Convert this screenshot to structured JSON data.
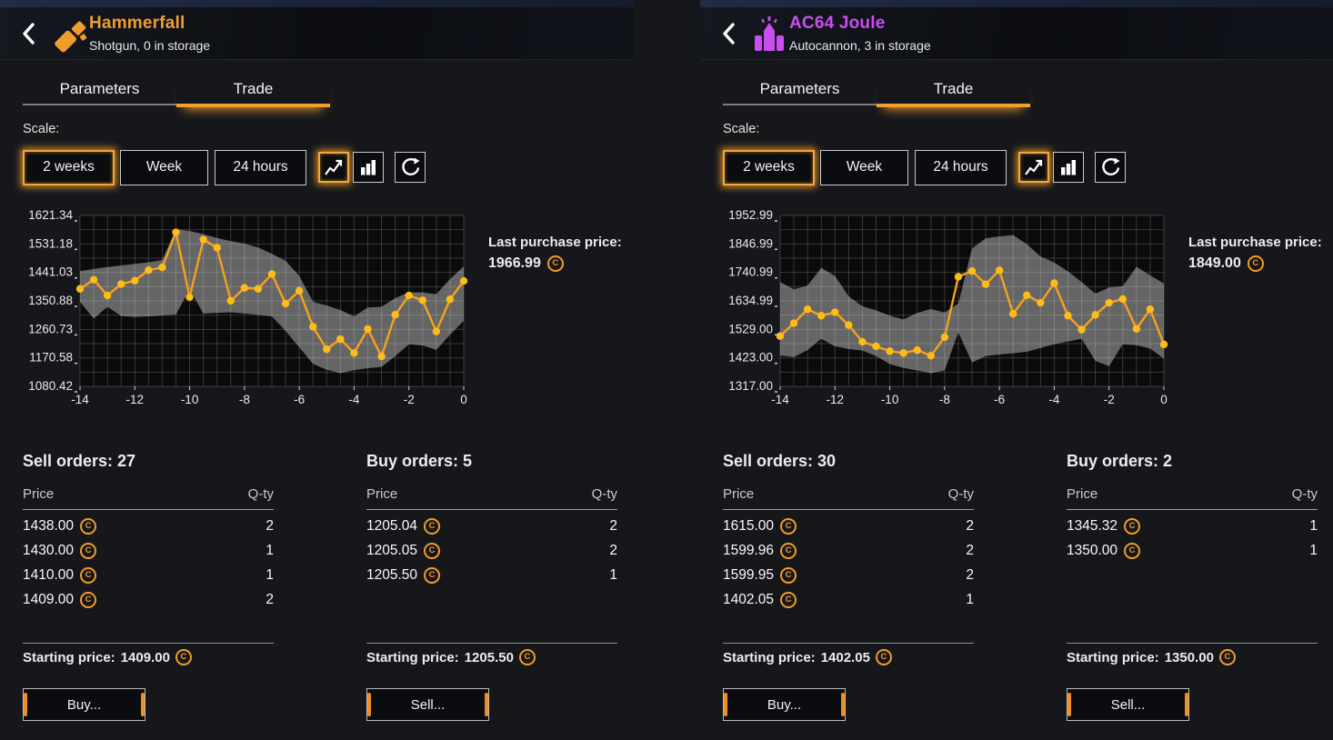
{
  "colors": {
    "accent_orange": "#f09d2e",
    "accent_purple": "#c84ef0",
    "chart_line": "#f6a11c",
    "chart_dot": "#ffbb18",
    "chart_band": "#6e6e6e",
    "selected_glow": "#f4a63a"
  },
  "panels": [
    {
      "title": "Hammerfall",
      "subtitle": "Shotgun, 0 in storage",
      "icon": "shotgun-icon",
      "accent": "#f09d2e",
      "tabs": {
        "parameters": "Parameters",
        "trade": "Trade"
      },
      "active_tab": "Trade",
      "scale": {
        "label": "Scale:",
        "buttons": [
          "2 weeks",
          "Week",
          "24 hours"
        ],
        "selected": "2 weeks",
        "selected_view": "line"
      },
      "last_purchase": {
        "label": "Last purchase price:",
        "price": "1966.99"
      },
      "sell": {
        "title": "Sell orders: 27",
        "price_header": "Price",
        "qty_header": "Q-ty",
        "rows": [
          {
            "price": "1438.00",
            "qty": "2"
          },
          {
            "price": "1430.00",
            "qty": "1"
          },
          {
            "price": "1410.00",
            "qty": "1"
          },
          {
            "price": "1409.00",
            "qty": "2"
          }
        ],
        "starting_label": "Starting price:",
        "starting_price": "1409.00",
        "action": "Buy..."
      },
      "buy": {
        "title": "Buy orders: 5",
        "price_header": "Price",
        "qty_header": "Q-ty",
        "rows": [
          {
            "price": "1205.04",
            "qty": "2"
          },
          {
            "price": "1205.05",
            "qty": "2"
          },
          {
            "price": "1205.50",
            "qty": "1"
          }
        ],
        "starting_label": "Starting price:",
        "starting_price": "1205.50",
        "action": "Sell..."
      },
      "chart_data": {
        "type": "line",
        "x": [
          -14,
          -13.5,
          -13,
          -12.5,
          -12,
          -11.5,
          -11,
          -10.5,
          -10,
          -9.5,
          -9,
          -8.5,
          -8,
          -7.5,
          -7,
          -6.5,
          -6,
          -5.5,
          -5,
          -4.5,
          -4,
          -3.5,
          -3,
          -2.5,
          -2,
          -1.5,
          -1,
          -0.5,
          0
        ],
        "series": [
          {
            "name": "price",
            "values": [
              1389,
              1418,
              1368,
              1404,
              1415,
              1448,
              1457,
              1568,
              1363,
              1545,
              1519,
              1351,
              1392,
              1389,
              1436,
              1342,
              1383,
              1269,
              1198,
              1230,
              1186,
              1262,
              1175,
              1307,
              1368,
              1353,
              1254,
              1356,
              1414
            ]
          }
        ],
        "band_upper": [
          1445,
          1452,
          1458,
          1463,
          1468,
          1473,
          1480,
          1578,
          1572,
          1562,
          1550,
          1540,
          1532,
          1520,
          1500,
          1478,
          1430,
          1348,
          1336,
          1322,
          1302,
          1330,
          1332,
          1360,
          1378,
          1378,
          1372,
          1420,
          1460
        ],
        "band_lower": [
          1348,
          1295,
          1332,
          1303,
          1300,
          1302,
          1305,
          1308,
          1388,
          1311,
          1313,
          1315,
          1311,
          1307,
          1302,
          1256,
          1204,
          1152,
          1133,
          1122,
          1132,
          1138,
          1142,
          1176,
          1214,
          1210,
          1196,
          1244,
          1288
        ],
        "ylabels": [
          "1621.34",
          "1531.18",
          "1441.03",
          "1350.88",
          "1260.73",
          "1170.58",
          "1080.42"
        ],
        "ylim": [
          1080.42,
          1621.34
        ],
        "xticks": [
          -14,
          -12,
          -10,
          -8,
          -6,
          -4,
          -2,
          0
        ],
        "grid": true,
        "legend": false
      }
    },
    {
      "title": "AC64 Joule",
      "subtitle": "Autocannon, 3 in storage",
      "icon": "autocannon-icon",
      "accent": "#c84ef0",
      "tabs": {
        "parameters": "Parameters",
        "trade": "Trade"
      },
      "active_tab": "Trade",
      "scale": {
        "label": "Scale:",
        "buttons": [
          "2 weeks",
          "Week",
          "24 hours"
        ],
        "selected": "2 weeks",
        "selected_view": "line"
      },
      "last_purchase": {
        "label": "Last purchase price:",
        "price": "1849.00"
      },
      "sell": {
        "title": "Sell orders: 30",
        "price_header": "Price",
        "qty_header": "Q-ty",
        "rows": [
          {
            "price": "1615.00",
            "qty": "2"
          },
          {
            "price": "1599.96",
            "qty": "2"
          },
          {
            "price": "1599.95",
            "qty": "2"
          },
          {
            "price": "1402.05",
            "qty": "1"
          }
        ],
        "starting_label": "Starting price:",
        "starting_price": "1402.05",
        "action": "Buy..."
      },
      "buy": {
        "title": "Buy orders: 2",
        "price_header": "Price",
        "qty_header": "Q-ty",
        "rows": [
          {
            "price": "1345.32",
            "qty": "1"
          },
          {
            "price": "1350.00",
            "qty": "1"
          }
        ],
        "starting_label": "Starting price:",
        "starting_price": "1350.00",
        "action": "Sell..."
      },
      "chart_data": {
        "type": "line",
        "x": [
          -14,
          -13.5,
          -13,
          -12.5,
          -12,
          -11.5,
          -11,
          -10.5,
          -10,
          -9.5,
          -9,
          -8.5,
          -8,
          -7.5,
          -7,
          -6.5,
          -6,
          -5.5,
          -5,
          -4.5,
          -4,
          -3.5,
          -3,
          -2.5,
          -2,
          -1.5,
          -1,
          -0.5,
          0
        ],
        "series": [
          {
            "name": "price",
            "values": [
              1504,
              1552,
              1604,
              1580,
              1593,
              1545,
              1483,
              1466,
              1448,
              1441,
              1452,
              1431,
              1500,
              1725,
              1746,
              1697,
              1749,
              1587,
              1656,
              1628,
              1701,
              1580,
              1528,
              1583,
              1628,
              1642,
              1531,
              1604,
              1473
            ]
          }
        ],
        "band_upper": [
          1705,
          1678,
          1692,
          1758,
          1728,
          1652,
          1615,
          1600,
          1580,
          1566,
          1590,
          1605,
          1592,
          1625,
          1830,
          1868,
          1875,
          1880,
          1846,
          1800,
          1778,
          1745,
          1705,
          1662,
          1685,
          1690,
          1762,
          1730,
          1700
        ],
        "band_lower": [
          1432,
          1426,
          1452,
          1494,
          1466,
          1456,
          1450,
          1430,
          1400,
          1386,
          1376,
          1366,
          1376,
          1518,
          1406,
          1430,
          1436,
          1440,
          1446,
          1460,
          1474,
          1484,
          1494,
          1412,
          1392,
          1474,
          1470,
          1458,
          1420
        ],
        "ylabels": [
          "1952.99",
          "1846.99",
          "1740.99",
          "1634.99",
          "1529.00",
          "1423.00",
          "1317.00"
        ],
        "ylim": [
          1317.0,
          1952.99
        ],
        "xticks": [
          -14,
          -12,
          -10,
          -8,
          -6,
          -4,
          -2,
          0
        ],
        "grid": true,
        "legend": false
      }
    }
  ]
}
